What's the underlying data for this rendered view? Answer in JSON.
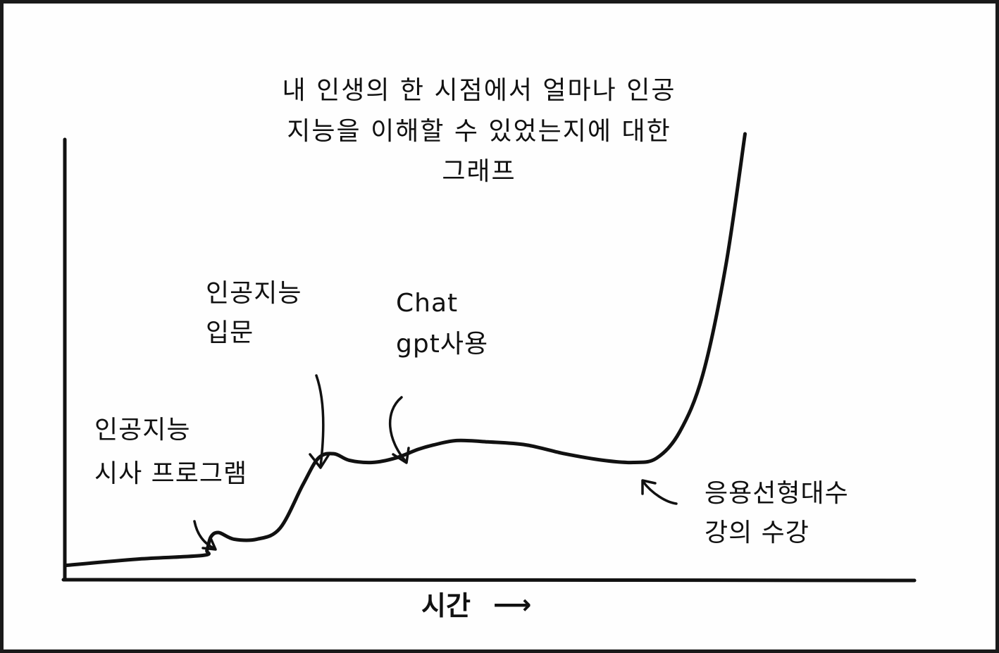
{
  "chart_data": {
    "type": "line",
    "title": "내 인생의 한 시점에서 얼마나 인공 지능을 이해할 수 있었는지에 대한 그래프",
    "title_lines": [
      "내 인생의 한 시점에서 얼마나 인공",
      "지능을 이해할 수 있었는지에 대한",
      "그래프"
    ],
    "xlabel": "시간",
    "xlabel_arrow": "⟶",
    "ylabel": "",
    "x_unit": "relative time (0-1)",
    "y_unit": "relative understanding (0-1)",
    "xlim": [
      0,
      1
    ],
    "ylim": [
      0,
      1
    ],
    "grid": false,
    "line_color": "#111111",
    "series": [
      {
        "values": [
          [
            0.0,
            0.015
          ],
          [
            0.1,
            0.03
          ],
          [
            0.18,
            0.038
          ],
          [
            0.185,
            0.05
          ],
          [
            0.19,
            0.08
          ],
          [
            0.2,
            0.09
          ],
          [
            0.22,
            0.075
          ],
          [
            0.25,
            0.075
          ],
          [
            0.28,
            0.1
          ],
          [
            0.31,
            0.2
          ],
          [
            0.33,
            0.26
          ],
          [
            0.35,
            0.27
          ],
          [
            0.37,
            0.255
          ],
          [
            0.4,
            0.25
          ],
          [
            0.43,
            0.26
          ],
          [
            0.46,
            0.28
          ],
          [
            0.48,
            0.29
          ],
          [
            0.51,
            0.3
          ],
          [
            0.55,
            0.297
          ],
          [
            0.6,
            0.29
          ],
          [
            0.65,
            0.27
          ],
          [
            0.7,
            0.255
          ],
          [
            0.74,
            0.25
          ],
          [
            0.77,
            0.26
          ],
          [
            0.8,
            0.32
          ],
          [
            0.83,
            0.45
          ],
          [
            0.86,
            0.7
          ],
          [
            0.885,
            1.0
          ]
        ]
      }
    ],
    "annotations": [
      {
        "key": "ann1",
        "lines": [
          "인공지능",
          "시사 프로그램"
        ],
        "point": [
          0.19,
          0.08
        ]
      },
      {
        "key": "ann2",
        "lines": [
          "인공지능",
          "입문"
        ],
        "point": [
          0.33,
          0.26
        ]
      },
      {
        "key": "ann3",
        "lines": [
          "Chat",
          "gpt사용"
        ],
        "point": [
          0.41,
          0.25
        ]
      },
      {
        "key": "ann4",
        "lines": [
          "응용선형대수",
          "강의 수강"
        ],
        "point": [
          0.74,
          0.25
        ]
      }
    ]
  }
}
